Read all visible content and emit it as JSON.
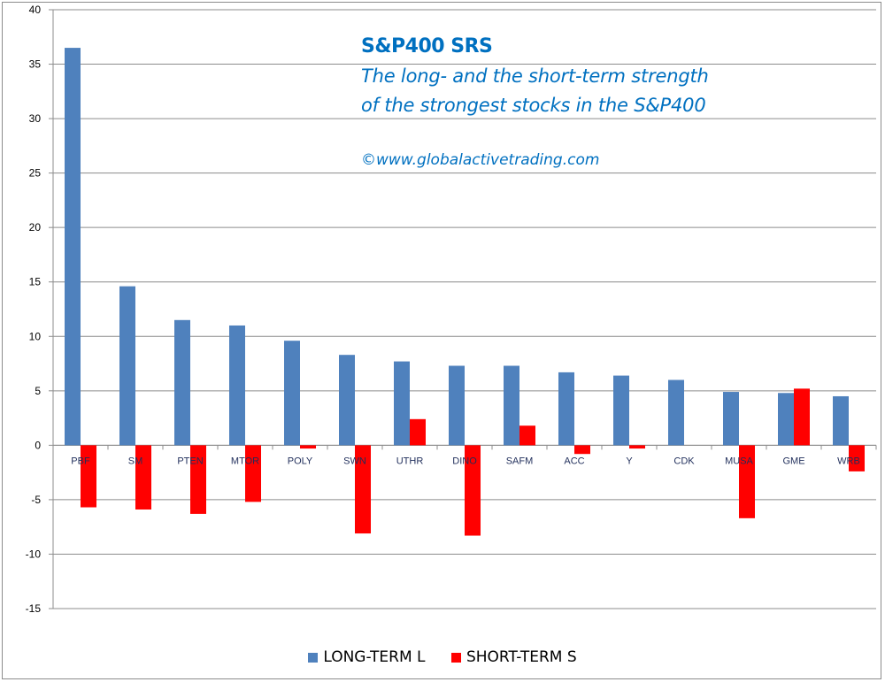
{
  "chart_data": {
    "type": "bar",
    "categories": [
      "PBF",
      "SM",
      "PTEN",
      "MTOR",
      "POLY",
      "SWN",
      "UTHR",
      "DINO",
      "SAFM",
      "ACC",
      "Y",
      "CDK",
      "MUSA",
      "GME",
      "WRB"
    ],
    "series": [
      {
        "name": "LONG-TERM  L",
        "color": "#4f81bd",
        "values": [
          36.5,
          14.6,
          11.5,
          11.0,
          9.6,
          8.3,
          7.7,
          7.3,
          7.3,
          6.7,
          6.4,
          6.0,
          4.9,
          4.8,
          4.5
        ]
      },
      {
        "name": "SHORT-TERM  S",
        "color": "#ff0000",
        "values": [
          -5.7,
          -5.9,
          -6.3,
          -5.2,
          -0.3,
          -8.1,
          2.4,
          -8.3,
          1.8,
          -0.8,
          -0.3,
          0,
          -6.7,
          5.2,
          -2.4
        ]
      }
    ],
    "title": "S&P400 SRS",
    "subtitle_lines": [
      "The long- and the short-term strength",
      "of the  strongest stocks in the S&P400"
    ],
    "annotation": "©www.globalactivetrading.com",
    "ylim": [
      -15,
      40
    ],
    "yticks": [
      -15,
      -10,
      -5,
      0,
      5,
      10,
      15,
      20,
      25,
      30,
      35,
      40
    ],
    "grid": true,
    "legend_position": "bottom"
  }
}
